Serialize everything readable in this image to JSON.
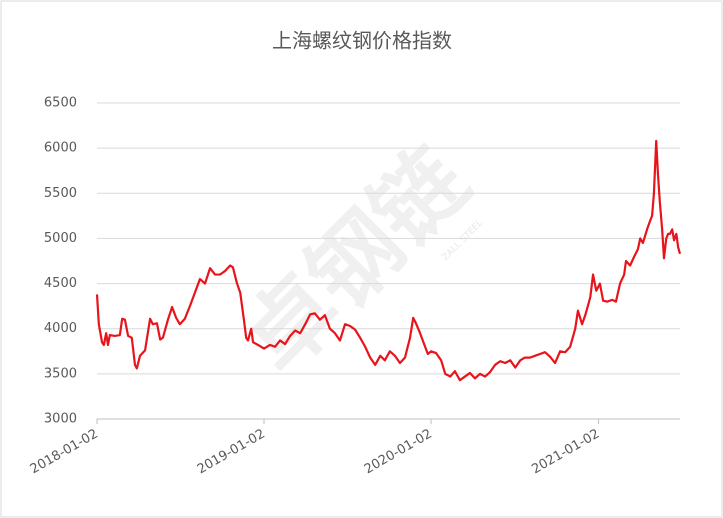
{
  "chart_data": {
    "type": "line",
    "title": "上海螺纹钢价格指数",
    "watermark": "卓钢链",
    "watermark_sub": "ZALL STEEL",
    "x": [
      "2018-01-02",
      "2018-01-06",
      "2018-01-13",
      "2018-01-17",
      "2018-01-22",
      "2018-01-26",
      "2018-01-30",
      "2018-02-10",
      "2018-02-21",
      "2018-02-26",
      "2018-03-04",
      "2018-03-11",
      "2018-03-19",
      "2018-03-26",
      "2018-03-30",
      "2018-04-06",
      "2018-04-17",
      "2018-04-28",
      "2018-05-04",
      "2018-05-13",
      "2018-05-20",
      "2018-05-26",
      "2018-06-06",
      "2018-06-15",
      "2018-06-24",
      "2018-07-02",
      "2018-07-13",
      "2018-07-24",
      "2018-08-04",
      "2018-08-15",
      "2018-08-26",
      "2018-09-06",
      "2018-09-17",
      "2018-09-28",
      "2018-10-09",
      "2018-10-20",
      "2018-10-26",
      "2018-11-04",
      "2018-11-11",
      "2018-11-19",
      "2018-11-24",
      "2018-11-28",
      "2018-12-05",
      "2018-12-09",
      "2018-12-20",
      "2019-01-02",
      "2019-01-15",
      "2019-01-26",
      "2019-02-06",
      "2019-02-17",
      "2019-02-28",
      "2019-03-11",
      "2019-03-22",
      "2019-04-02",
      "2019-04-13",
      "2019-04-23",
      "2019-05-04",
      "2019-05-15",
      "2019-05-26",
      "2019-06-06",
      "2019-06-17",
      "2019-06-28",
      "2019-07-09",
      "2019-07-20",
      "2019-07-31",
      "2019-08-11",
      "2019-08-22",
      "2019-09-02",
      "2019-09-13",
      "2019-09-23",
      "2019-10-04",
      "2019-10-15",
      "2019-10-26",
      "2019-11-06",
      "2019-11-17",
      "2019-11-24",
      "2019-11-30",
      "2019-12-09",
      "2019-12-20",
      "2019-12-26",
      "2020-01-02",
      "2020-01-13",
      "2020-01-24",
      "2020-02-02",
      "2020-02-13",
      "2020-02-23",
      "2020-03-05",
      "2020-03-16",
      "2020-03-27",
      "2020-04-07",
      "2020-04-18",
      "2020-04-29",
      "2020-05-10",
      "2020-05-21",
      "2020-06-01",
      "2020-06-12",
      "2020-06-23",
      "2020-07-04",
      "2020-07-15",
      "2020-07-25",
      "2020-08-05",
      "2020-08-16",
      "2020-08-27",
      "2020-09-07",
      "2020-09-18",
      "2020-09-29",
      "2020-10-10",
      "2020-10-21",
      "2020-11-01",
      "2020-11-12",
      "2020-11-18",
      "2020-11-27",
      "2020-12-04",
      "2020-12-15",
      "2020-12-21",
      "2020-12-28",
      "2021-01-05",
      "2021-01-12",
      "2021-01-21",
      "2021-02-01",
      "2021-02-09",
      "2021-02-18",
      "2021-02-27",
      "2021-03-03",
      "2021-03-12",
      "2021-03-21",
      "2021-03-29",
      "2021-04-03",
      "2021-04-09",
      "2021-04-18",
      "2021-04-25",
      "2021-04-29",
      "2021-05-03",
      "2021-05-08",
      "2021-05-12",
      "2021-05-16",
      "2021-05-21",
      "2021-05-25",
      "2021-05-30",
      "2021-06-03",
      "2021-06-07",
      "2021-06-12",
      "2021-06-16",
      "2021-06-21",
      "2021-06-25",
      "2021-06-29"
    ],
    "series": [
      {
        "name": "上海螺纹钢价格指数",
        "color": "#e8141b",
        "values": [
          4380,
          4050,
          3850,
          3820,
          3950,
          3820,
          3930,
          3920,
          3930,
          4110,
          4100,
          3920,
          3900,
          3600,
          3560,
          3700,
          3760,
          4110,
          4050,
          4060,
          3880,
          3900,
          4100,
          4240,
          4120,
          4050,
          4110,
          4250,
          4400,
          4550,
          4500,
          4670,
          4600,
          4600,
          4640,
          4700,
          4680,
          4500,
          4400,
          4100,
          3900,
          3870,
          4000,
          3850,
          3820,
          3780,
          3820,
          3800,
          3870,
          3830,
          3920,
          3980,
          3950,
          4050,
          4160,
          4170,
          4100,
          4150,
          4000,
          3950,
          3870,
          4050,
          4030,
          3990,
          3900,
          3800,
          3680,
          3600,
          3700,
          3650,
          3750,
          3700,
          3620,
          3680,
          3900,
          4120,
          4060,
          3950,
          3800,
          3720,
          3750,
          3730,
          3650,
          3500,
          3470,
          3530,
          3430,
          3470,
          3510,
          3450,
          3500,
          3470,
          3520,
          3600,
          3640,
          3620,
          3650,
          3570,
          3650,
          3680,
          3680,
          3700,
          3720,
          3740,
          3690,
          3620,
          3750,
          3740,
          3800,
          4000,
          4200,
          4050,
          4150,
          4350,
          4600,
          4420,
          4500,
          4310,
          4300,
          4320,
          4300,
          4500,
          4600,
          4750,
          4700,
          4800,
          4880,
          5000,
          4950,
          5100,
          5200,
          5250,
          5500,
          6080,
          5700,
          5400,
          5100,
          4780,
          5000,
          5050,
          5050,
          5100,
          4980,
          5050,
          4900,
          4830
        ]
      }
    ],
    "xlim": [
      "2018-01-02",
      "2021-06-29"
    ],
    "xticks": [
      "2018-01-02",
      "2019-01-02",
      "2020-01-02",
      "2021-01-02"
    ],
    "ylim": [
      3000,
      6500
    ],
    "yticks": [
      3000,
      3500,
      4000,
      4500,
      5000,
      5500,
      6000,
      6500
    ],
    "grid": true
  }
}
